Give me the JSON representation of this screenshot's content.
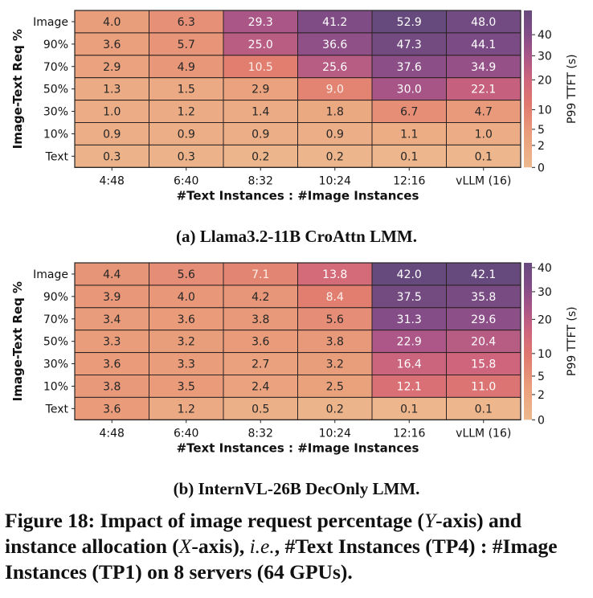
{
  "chart_data": [
    {
      "type": "heatmap",
      "id": "a",
      "caption": "(a) Llama3.2-11B CroAttn LMM.",
      "xlabel": "#Text Instances : #Image Instances",
      "ylabel": "Image-Text Req %",
      "x_categories": [
        "4:48",
        "6:40",
        "8:32",
        "10:24",
        "12:16",
        "vLLM (16)"
      ],
      "y_categories": [
        "Image",
        "90%",
        "70%",
        "50%",
        "30%",
        "10%",
        "Text"
      ],
      "values": [
        [
          4.0,
          6.3,
          29.3,
          41.2,
          52.9,
          48.0
        ],
        [
          3.6,
          5.7,
          25.0,
          36.6,
          47.3,
          44.1
        ],
        [
          2.9,
          4.9,
          10.5,
          25.6,
          37.6,
          34.9
        ],
        [
          1.3,
          1.5,
          2.9,
          9.0,
          30.0,
          22.1
        ],
        [
          1.0,
          1.2,
          1.4,
          1.8,
          6.7,
          4.7
        ],
        [
          0.9,
          0.9,
          0.9,
          0.9,
          1.1,
          1.0
        ],
        [
          0.3,
          0.3,
          0.2,
          0.2,
          0.1,
          0.1
        ]
      ],
      "colorbar": {
        "label": "P99 TTFT (s)",
        "range": [
          0,
          52.9
        ],
        "ticks": [
          0,
          2,
          5,
          10,
          20,
          30,
          40
        ],
        "scale": "power-0.6",
        "colormap": "flare"
      }
    },
    {
      "type": "heatmap",
      "id": "b",
      "caption": "(b) InternVL-26B DecOnly LMM.",
      "xlabel": "#Text Instances : #Image Instances",
      "ylabel": "Image-Text Req %",
      "x_categories": [
        "4:48",
        "6:40",
        "8:32",
        "10:24",
        "12:16",
        "vLLM (16)"
      ],
      "y_categories": [
        "Image",
        "90%",
        "70%",
        "50%",
        "30%",
        "10%",
        "Text"
      ],
      "values": [
        [
          4.4,
          5.6,
          7.1,
          13.8,
          42.0,
          42.1
        ],
        [
          3.9,
          4.0,
          4.2,
          8.4,
          37.5,
          35.8
        ],
        [
          3.4,
          3.6,
          3.8,
          5.6,
          31.3,
          29.6
        ],
        [
          3.3,
          3.2,
          3.6,
          3.8,
          22.9,
          20.4
        ],
        [
          3.6,
          3.3,
          2.7,
          3.2,
          16.4,
          15.8
        ],
        [
          3.8,
          3.5,
          2.4,
          2.5,
          12.1,
          11.0
        ],
        [
          3.6,
          1.2,
          0.5,
          0.2,
          0.1,
          0.1
        ]
      ],
      "colorbar": {
        "label": "P99 TTFT (s)",
        "range": [
          0,
          42.1
        ],
        "ticks": [
          0,
          2,
          5,
          10,
          20,
          30,
          40
        ],
        "scale": "power-0.6",
        "colormap": "flare"
      }
    }
  ],
  "figure_caption": {
    "label": "Figure 18: Impact of image request percentage (",
    "y_var": "Y",
    "part2": "-axis) and instance allocation (",
    "x_var": "X",
    "part3": "-axis), ",
    "ie": "i.e.",
    "part4": ", #Text Instances (TP4) : #Image Instances (TP1) on 8 servers (64 GPUs)."
  },
  "colors": {
    "low": "#edb98e",
    "mid": "#e07a6f",
    "high": "#6a4a7f",
    "cell_border": "#2a2020"
  }
}
